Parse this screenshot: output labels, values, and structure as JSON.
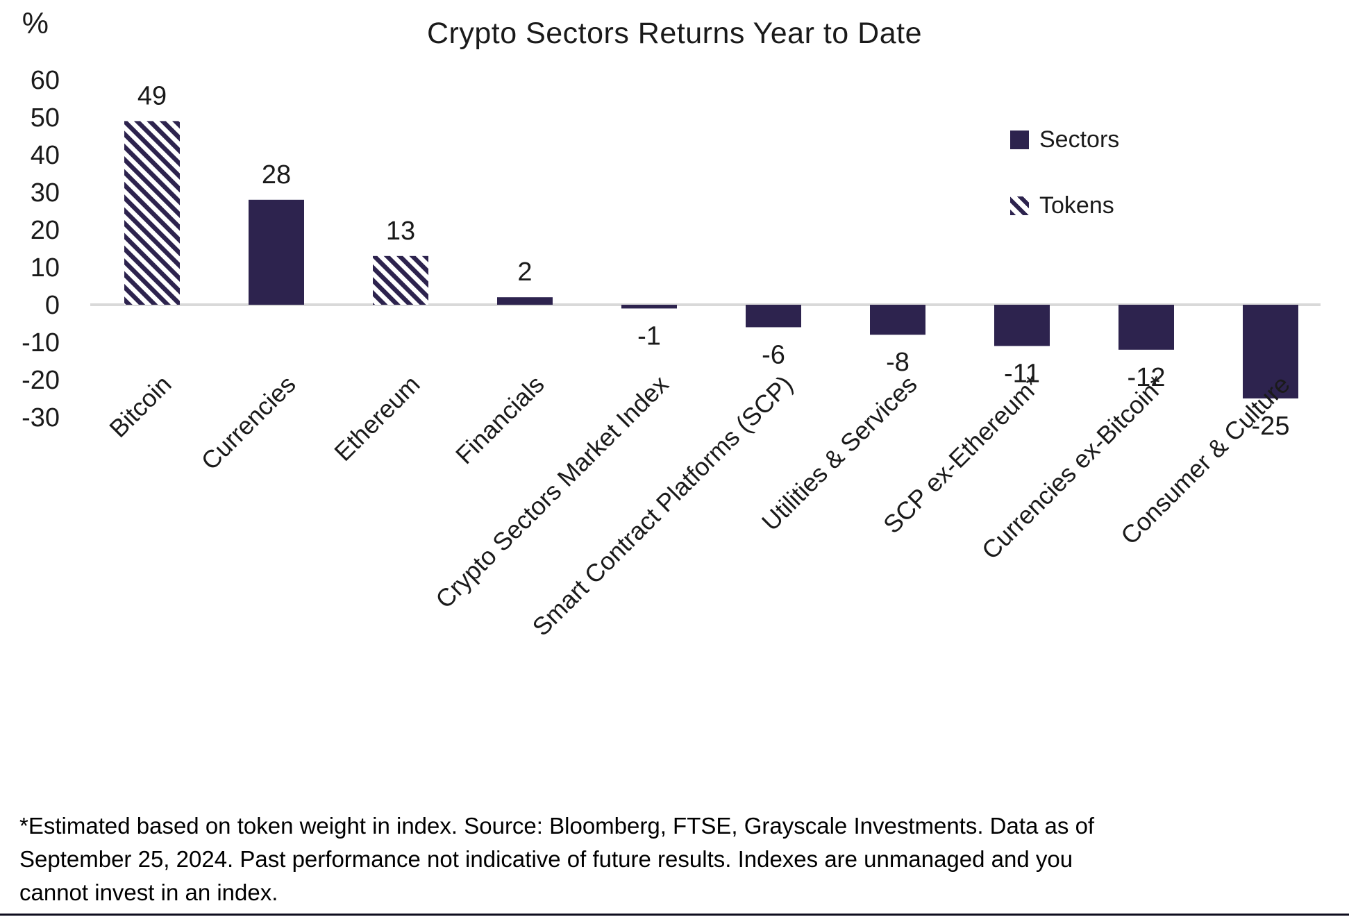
{
  "page": {
    "background": "#ffffff",
    "bottom_rule_color": "#0e0d1e"
  },
  "chart_data": {
    "type": "bar",
    "title": "Crypto Sectors Returns Year to Date",
    "y_axis": {
      "unit_label": "%",
      "ticks": [
        60,
        50,
        40,
        30,
        20,
        10,
        0,
        -10,
        -20,
        -30
      ],
      "min": -30,
      "max": 60,
      "grid": false
    },
    "categories": [
      "Bitcoin",
      "Currencies",
      "Ethereum",
      "Financials",
      "Crypto Sectors Market Index",
      "Smart Contract Platforms (SCP)",
      "Utilities & Services",
      "SCP ex-Ethereum*",
      "Currencies ex-Bitcoin*",
      "Consumer & Culture"
    ],
    "values": [
      49,
      28,
      13,
      2,
      -1,
      -6,
      -8,
      -11,
      -12,
      -25
    ],
    "value_labels": [
      "49",
      "28",
      "13",
      "2",
      "-1",
      "-6",
      "-8",
      "-11",
      "-12",
      "-25"
    ],
    "styles": [
      "tokens",
      "sectors",
      "tokens",
      "sectors",
      "sectors",
      "sectors",
      "sectors",
      "sectors",
      "sectors",
      "sectors"
    ],
    "legend": {
      "position": "upper right",
      "entries": [
        {
          "label": "Sectors",
          "swatch": "solid"
        },
        {
          "label": "Tokens",
          "swatch": "hatched"
        }
      ]
    },
    "colors": {
      "bar": "#2d234e",
      "hatch_fg": "#2d234e",
      "hatch_bg": "#ffffff",
      "baseline": "#d9d9d9",
      "text": "#1a1a1a"
    }
  },
  "footnote": {
    "lines": [
      "*Estimated based on token weight in index. Source: Bloomberg, FTSE, Grayscale Investments. Data as of",
      "September 25, 2024. Past performance not indicative of future results. Indexes are unmanaged and you",
      "cannot invest in an index."
    ],
    "text": "*Estimated based on token weight in index. Source: Bloomberg, FTSE, Grayscale Investments. Data as of September 25, 2024. Past performance not indicative of future results. Indexes are unmanaged and you cannot invest in an index."
  }
}
